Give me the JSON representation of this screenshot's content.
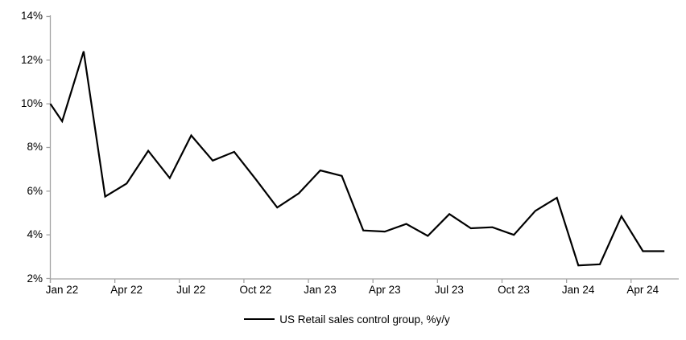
{
  "chart_data": {
    "type": "line",
    "title": "",
    "x": [
      "Jan 22",
      "Feb 22",
      "Mar 22",
      "Apr 22",
      "May 22",
      "Jun 22",
      "Jul 22",
      "Aug 22",
      "Sep 22",
      "Oct 22",
      "Nov 22",
      "Dec 22",
      "Jan 23",
      "Feb 23",
      "Mar 23",
      "Apr 23",
      "May 23",
      "Jun 23",
      "Jul 23",
      "Aug 23",
      "Sep 23",
      "Oct 23",
      "Nov 23",
      "Dec 23",
      "Jan 24",
      "Feb 24",
      "Mar 24",
      "Apr 24",
      "May 24"
    ],
    "series": [
      {
        "name": "US Retail sales control group, %y/y",
        "values": [
          9.2,
          12.4,
          5.75,
          6.35,
          7.85,
          6.6,
          8.55,
          7.4,
          7.8,
          6.55,
          5.25,
          5.9,
          6.95,
          6.7,
          4.2,
          4.15,
          4.5,
          3.95,
          4.95,
          4.3,
          4.35,
          4.0,
          5.1,
          5.7,
          2.6,
          2.65,
          4.85,
          3.25,
          3.25
        ],
        "color": "#000000"
      }
    ],
    "axis_start_value": 10.0,
    "y_tick_labels": [
      "2%",
      "4%",
      "6%",
      "8%",
      "10%",
      "12%",
      "14%"
    ],
    "x_tick_labels": [
      "Jan 22",
      "Apr 22",
      "Jul 22",
      "Oct 22",
      "Jan 23",
      "Apr 23",
      "Jul 23",
      "Oct 23",
      "Jan 24",
      "Apr 24"
    ],
    "ylim": [
      2,
      14
    ],
    "xlabel": "",
    "ylabel": "",
    "grid": false,
    "legend_position": "bottom-center",
    "colors": {
      "line": "#000000",
      "axis": "#a3a3a3",
      "text": "#000000",
      "background": "#ffffff"
    }
  }
}
